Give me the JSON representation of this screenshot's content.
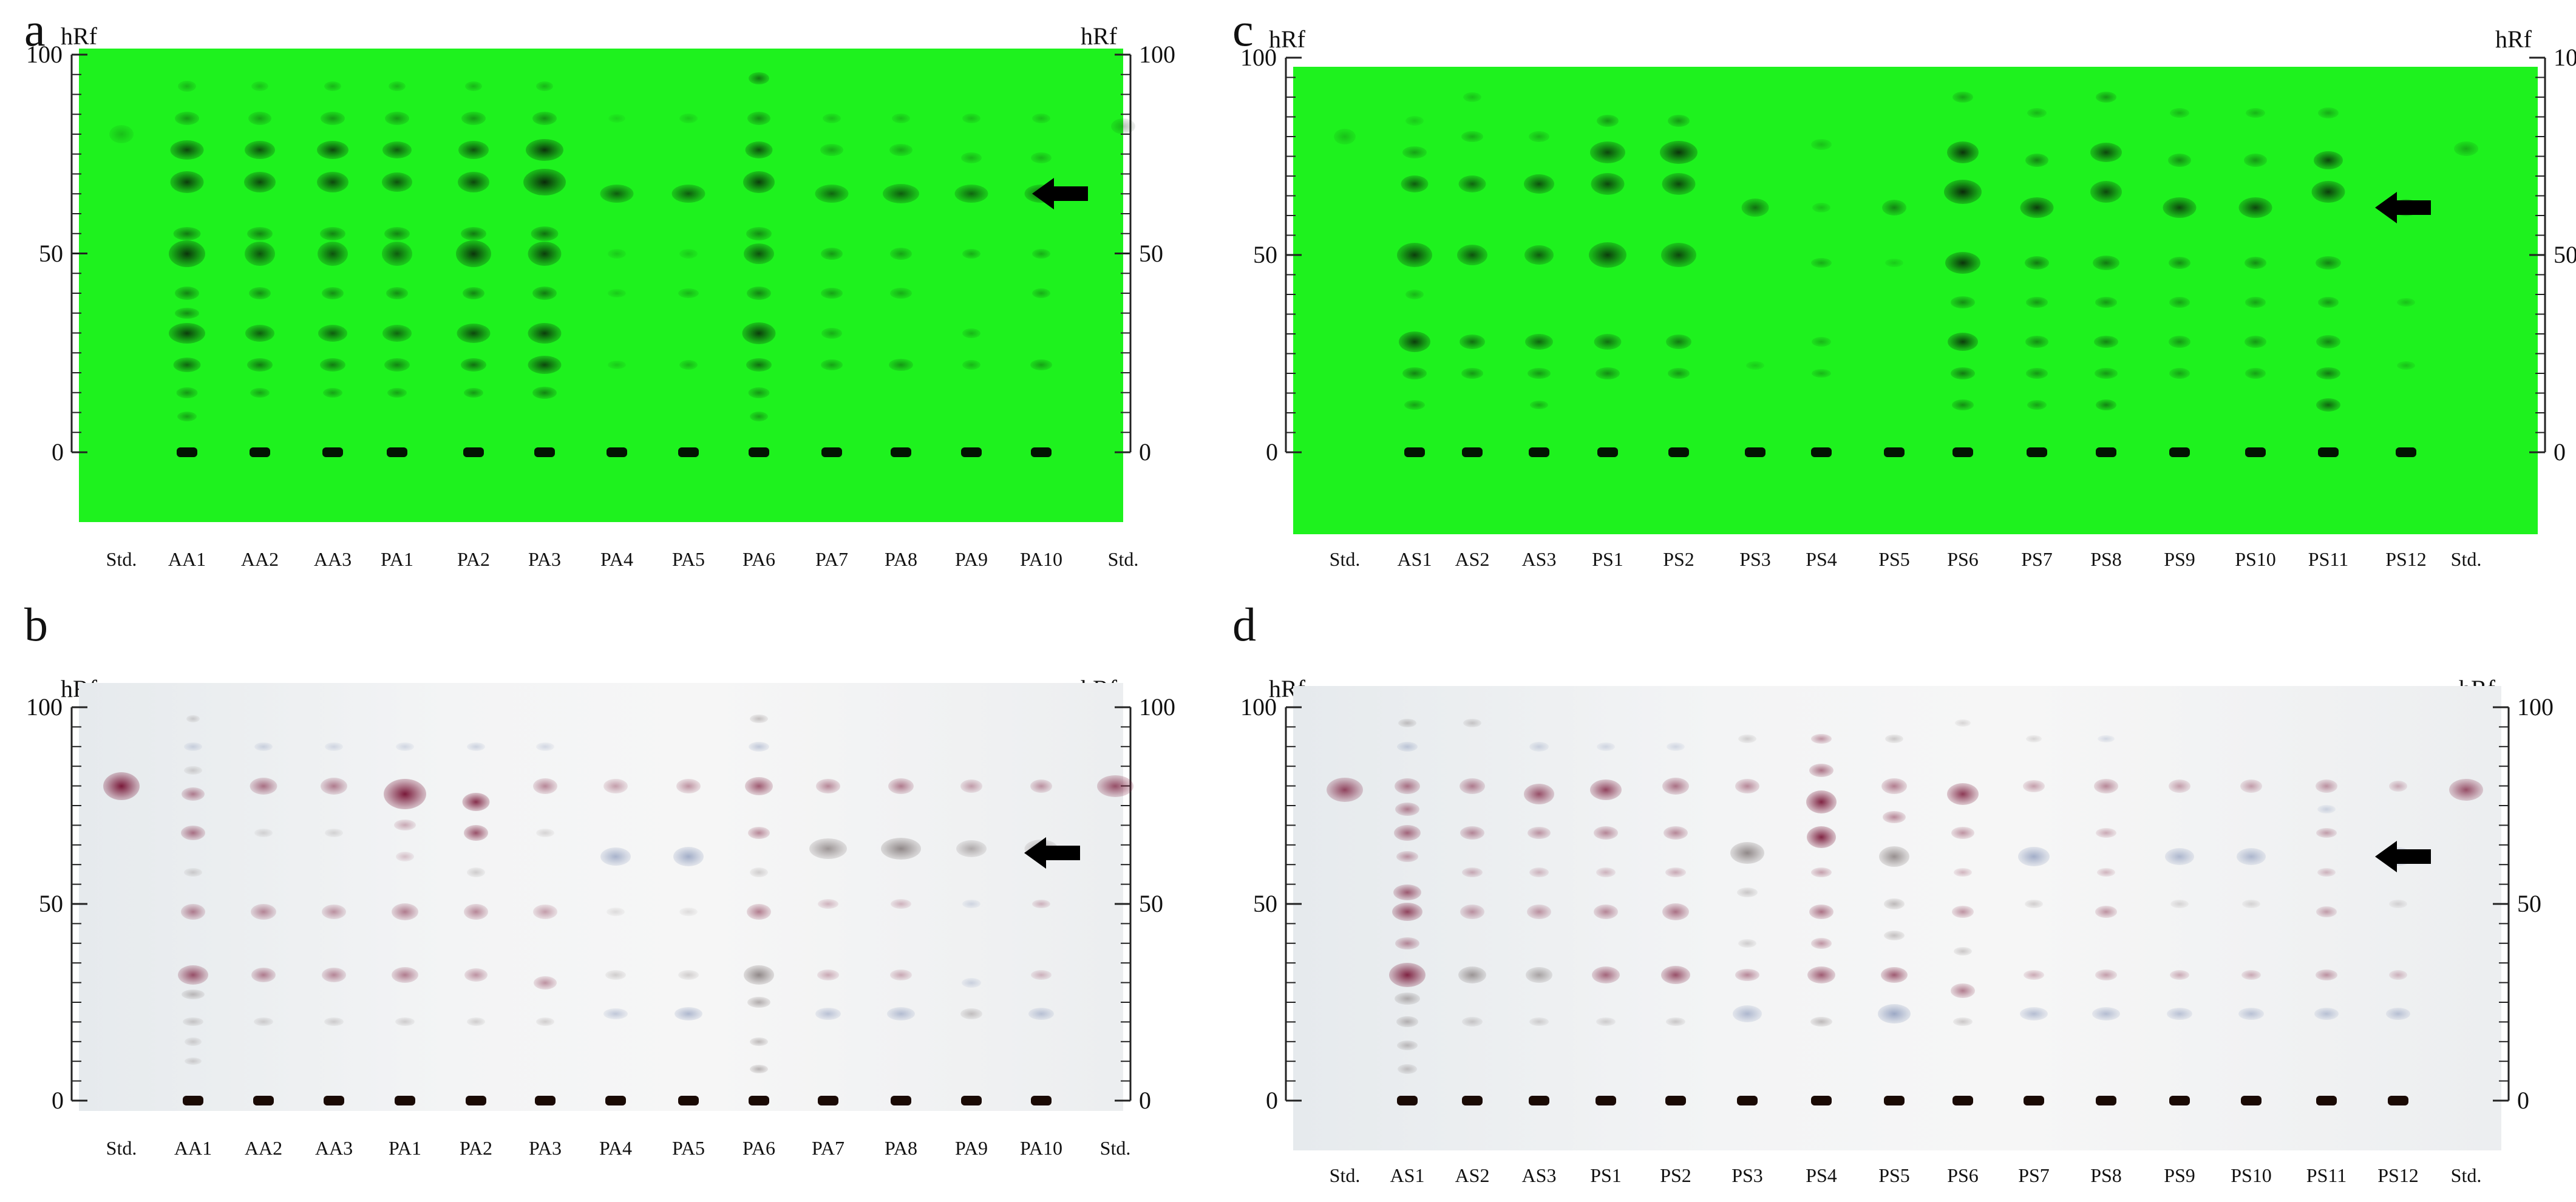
{
  "panels": [
    {
      "id": "a",
      "letter": "a",
      "axis_label": "hRf",
      "ticks": [
        "100",
        "50",
        "0"
      ],
      "plate": "green",
      "lanes": [
        "Std.",
        "AA1",
        "AA2",
        "AA3",
        "PA1",
        "PA2",
        "PA3",
        "PA4",
        "PA5",
        "PA6",
        "PA7",
        "PA8",
        "PA9",
        "PA10",
        "Std."
      ],
      "arrow_hrf": 65
    },
    {
      "id": "b",
      "letter": "b",
      "axis_label": "hRf",
      "ticks": [
        "100",
        "50",
        "0"
      ],
      "plate": "white",
      "lanes": [
        "Std.",
        "AA1",
        "AA2",
        "AA3",
        "PA1",
        "PA2",
        "PA3",
        "PA4",
        "PA5",
        "PA6",
        "PA7",
        "PA8",
        "PA9",
        "PA10",
        "Std."
      ],
      "arrow_hrf": 63
    },
    {
      "id": "c",
      "letter": "c",
      "axis_label": "hRf",
      "ticks": [
        "100",
        "50",
        "0"
      ],
      "plate": "green",
      "lanes": [
        "Std.",
        "AS1",
        "AS2",
        "AS3",
        "PS1",
        "PS2",
        "PS3",
        "PS4",
        "PS5",
        "PS6",
        "PS7",
        "PS8",
        "PS9",
        "PS10",
        "PS11",
        "PS12",
        "Std."
      ],
      "arrow_hrf": 62
    },
    {
      "id": "d",
      "letter": "d",
      "axis_label": "hRf",
      "ticks": [
        "100",
        "50",
        "0"
      ],
      "plate": "white",
      "lanes": [
        "Std.",
        "AS1",
        "AS2",
        "AS3",
        "PS1",
        "PS2",
        "PS3",
        "PS4",
        "PS5",
        "PS6",
        "PS7",
        "PS8",
        "PS9",
        "PS10",
        "PS11",
        "PS12",
        "Std."
      ],
      "arrow_hrf": 62
    }
  ],
  "colors": {
    "green_plate": "#1ef21e",
    "green_spot": "#0a2a0a",
    "white_plate": "#f2f3f4",
    "violet_spot": "#7a1a3a",
    "blue_spot": "#7f8fb5",
    "arrow": "#000000"
  },
  "icons": [
    "arrow-left-icon"
  ]
}
